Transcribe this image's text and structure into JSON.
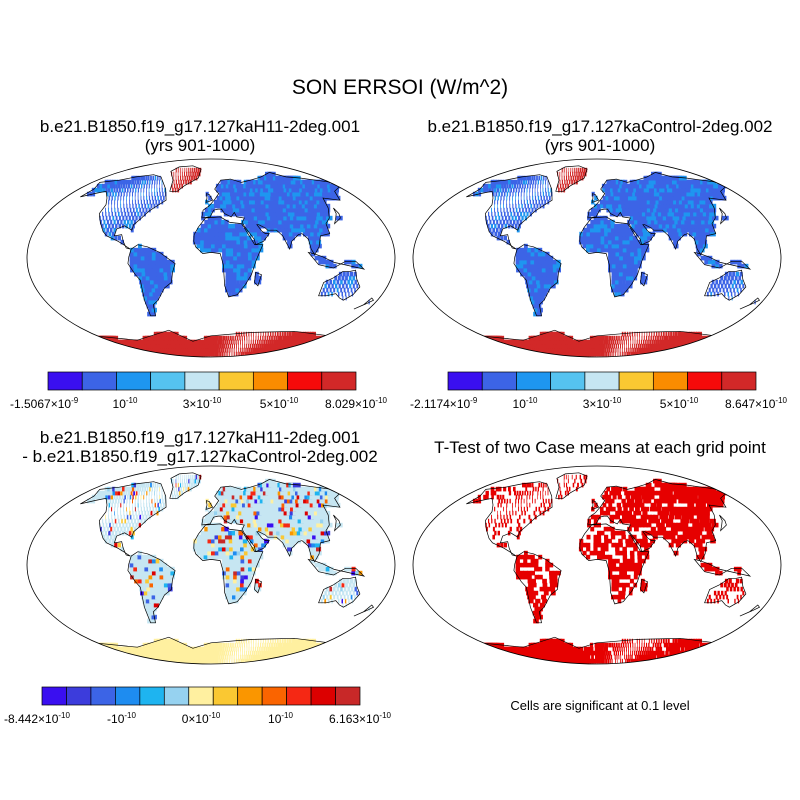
{
  "page_title": "SON ERRSOI (W/m^2)",
  "panels": [
    {
      "title_line1": "b.e21.B1850.f19_g17.127kaH11-2deg.001",
      "title_line2": "(yrs 901-1000)",
      "colorbar": {
        "colors": [
          "#3a0ff0",
          "#3c64e6",
          "#1e96f0",
          "#55c3f0",
          "#c6e6f2",
          "#fac832",
          "#fa8c00",
          "#f50a0a",
          "#d22828"
        ],
        "labels": [
          {
            "main": "-1.5067×10",
            "exp": "-9"
          },
          {
            "main": "10",
            "exp": "-10"
          },
          {
            "main": "3×10",
            "exp": "-10"
          },
          {
            "main": "5×10",
            "exp": "-10"
          },
          {
            "main": "8.029×10",
            "exp": "-10"
          }
        ]
      }
    },
    {
      "title_line1": "b.e21.B1850.f19_g17.127kaControl-2deg.002",
      "title_line2": "(yrs 901-1000)",
      "colorbar": {
        "colors": [
          "#3a0ff0",
          "#3c64e6",
          "#1e96f0",
          "#55c3f0",
          "#c6e6f2",
          "#fac832",
          "#fa8c00",
          "#f50a0a",
          "#d22828"
        ],
        "labels": [
          {
            "main": "-2.1174×10",
            "exp": "-9"
          },
          {
            "main": "10",
            "exp": "-10"
          },
          {
            "main": "3×10",
            "exp": "-10"
          },
          {
            "main": "5×10",
            "exp": "-10"
          },
          {
            "main": "8.647×10",
            "exp": "-10"
          }
        ]
      }
    },
    {
      "title_line1": "b.e21.B1850.f19_g17.127kaH11-2deg.001",
      "title_line2": "- b.e21.B1850.f19_g17.127kaControl-2deg.002",
      "colorbar": {
        "colors": [
          "#3a0ff0",
          "#3c3cdc",
          "#3c64e6",
          "#1e8cf0",
          "#1eb4f0",
          "#96d2f0",
          "#fff0a0",
          "#fac832",
          "#fa9600",
          "#fa6400",
          "#f52814",
          "#dc0000",
          "#c82828"
        ],
        "labels": [
          {
            "main": "-8.442×10",
            "exp": "-10"
          },
          {
            "main": "-10",
            "exp": "-10"
          },
          {
            "main": "0×10",
            "exp": "-10"
          },
          {
            "main": "10",
            "exp": "-10"
          },
          {
            "main": "6.163×10",
            "exp": "-10"
          }
        ]
      }
    },
    {
      "title_line1": "T-Test of two Case means at each grid point",
      "note": "Cells are significant at 0.1 level",
      "colors": {
        "signif": "#e60000"
      }
    }
  ],
  "map_colors": {
    "land_blue": "#3c64e6",
    "land_blue_alt": "#1e96f0",
    "greenland_red": "#d22828",
    "antarctica_red": "#d22828",
    "diff_land": "#c6e6f2",
    "diff_antarctica": "#fff0a0"
  }
}
